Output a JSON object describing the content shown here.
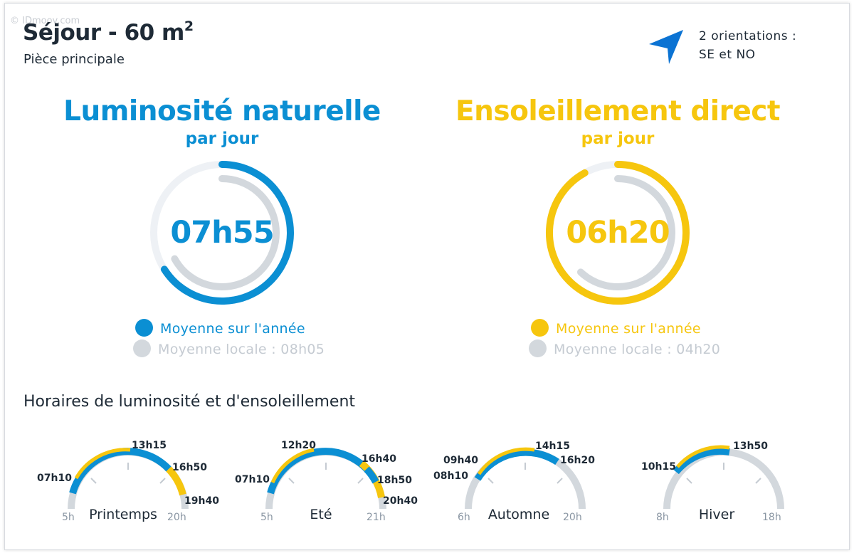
{
  "watermark": "© IDmoov.com",
  "header": {
    "title": "Séjour - 60 m",
    "title_sup": "2",
    "subtitle": "Pièce principale",
    "orientation_line1": "2 orientations :",
    "orientation_line2": "SE et NO"
  },
  "luminosity": {
    "title": "Luminosité naturelle",
    "subtitle": "par jour",
    "value": "07h55",
    "fraction": 0.66,
    "local_fraction": 0.67,
    "legend_main": "Moyenne sur l'année",
    "legend_local": "Moyenne locale : 08h05"
  },
  "sunshine": {
    "title": "Ensoleillement direct",
    "subtitle": "par jour",
    "value": "06h20",
    "fraction": 0.92,
    "local_fraction": 0.62,
    "legend_main": "Moyenne sur l'année",
    "legend_local": "Moyenne locale : 04h20"
  },
  "schedule": {
    "title": "Horaires de luminosité et d'ensoleillement",
    "seasons": [
      {
        "name": "Printemps",
        "axis_start": "5h",
        "axis_end": "20h",
        "labels": [
          "07h10",
          "13h15",
          "16h50",
          "19h40"
        ]
      },
      {
        "name": "Eté",
        "axis_start": "5h",
        "axis_end": "21h",
        "labels": [
          "07h10",
          "12h20",
          "16h40",
          "18h50",
          "20h40"
        ]
      },
      {
        "name": "Automne",
        "axis_start": "6h",
        "axis_end": "20h",
        "labels": [
          "08h10",
          "09h40",
          "14h15",
          "16h20"
        ]
      },
      {
        "name": "Hiver",
        "axis_start": "8h",
        "axis_end": "18h",
        "labels": [
          "10h15",
          "13h50"
        ]
      }
    ]
  },
  "colors": {
    "blue": "#0b8fd3",
    "yellow": "#f6c60e",
    "grey": "#d3d8dd",
    "light": "#eef1f5",
    "arrow": "#0b73d3"
  }
}
